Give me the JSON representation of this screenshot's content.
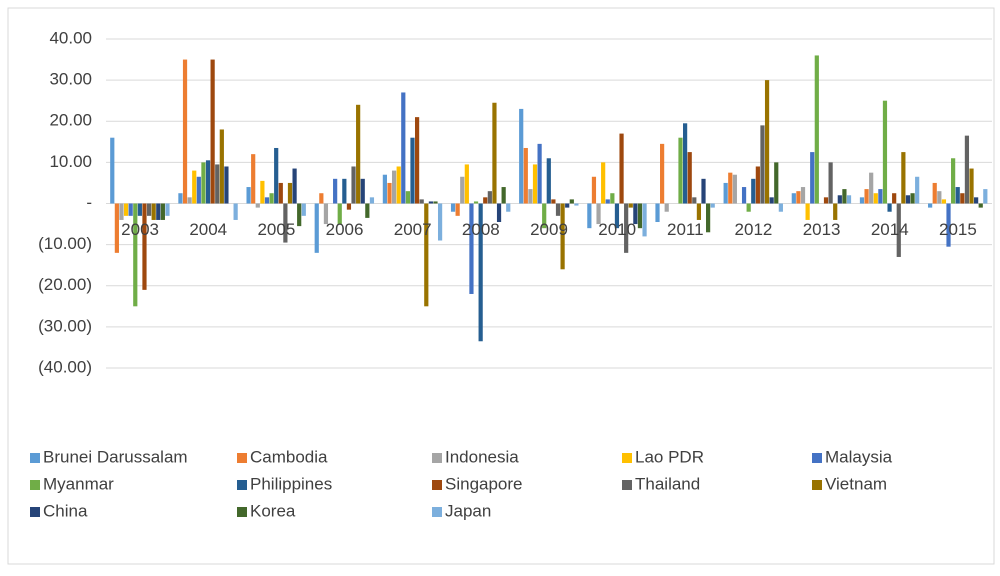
{
  "chart_data": {
    "type": "bar",
    "categories": [
      "2003",
      "2004",
      "2005",
      "2006",
      "2007",
      "2008",
      "2009",
      "2010",
      "2011",
      "2012",
      "2013",
      "2014",
      "2015"
    ],
    "ylim": [
      -40,
      40
    ],
    "yticks": [
      {
        "value": 40,
        "label": "40.00"
      },
      {
        "value": 30,
        "label": "30.00"
      },
      {
        "value": 20,
        "label": "20.00"
      },
      {
        "value": 10,
        "label": "10.00"
      },
      {
        "value": 0,
        "label": "-"
      },
      {
        "value": -10,
        "label": "(10.00)"
      },
      {
        "value": -20,
        "label": "(20.00)"
      },
      {
        "value": -30,
        "label": "(30.00)"
      },
      {
        "value": -40,
        "label": "(40.00)"
      }
    ],
    "grid": true,
    "legend": "bottom",
    "series": [
      {
        "name": "Brunei Darussalam",
        "color": "#5b9bd5",
        "values": [
          16,
          2.5,
          4,
          -12,
          7,
          -2,
          23,
          -6,
          -4.5,
          5,
          2.5,
          1.5,
          -1
        ]
      },
      {
        "name": "Cambodia",
        "color": "#ed7d31",
        "values": [
          -12,
          35,
          12,
          2.5,
          5,
          -3,
          13.5,
          6.5,
          14.5,
          7.5,
          3,
          3.5,
          5
        ]
      },
      {
        "name": "Indonesia",
        "color": "#a5a5a5",
        "values": [
          -4,
          1.5,
          -1,
          -5,
          8,
          6.5,
          3.5,
          -5,
          -2,
          7,
          4,
          7.5,
          3
        ]
      },
      {
        "name": "Lao PDR",
        "color": "#ffc000",
        "values": [
          -3,
          8,
          5.5,
          0,
          9,
          9.5,
          9.5,
          10,
          0,
          0,
          -4,
          2.5,
          1
        ]
      },
      {
        "name": "Malaysia",
        "color": "#4472c4",
        "values": [
          -3,
          6.5,
          1.5,
          6,
          27,
          -22,
          14.5,
          1,
          0,
          4,
          12.5,
          3.5,
          -10.5
        ]
      },
      {
        "name": "Myanmar",
        "color": "#70ad47",
        "values": [
          -25,
          10,
          2.5,
          -5,
          3,
          0.5,
          -6,
          2.5,
          16,
          -2,
          36,
          25,
          11
        ]
      },
      {
        "name": "Philippines",
        "color": "#255e91",
        "values": [
          -3,
          10.5,
          13.5,
          6,
          16,
          -33.5,
          11,
          -6,
          19.5,
          6,
          0,
          -2,
          4
        ]
      },
      {
        "name": "Singapore",
        "color": "#9e480e",
        "values": [
          -21,
          35,
          5,
          -1.5,
          21,
          1.5,
          1,
          17,
          12.5,
          9,
          1.5,
          2.5,
          2.5
        ]
      },
      {
        "name": "Thailand",
        "color": "#636363",
        "values": [
          -3,
          9.5,
          -9.5,
          9,
          1,
          3,
          -3,
          -12,
          1.5,
          19,
          10,
          -13,
          16.5
        ]
      },
      {
        "name": "Vietnam",
        "color": "#997300",
        "values": [
          -4,
          18,
          5,
          24,
          -25,
          24.5,
          -16,
          -1,
          -4,
          30,
          -4,
          12.5,
          8.5
        ]
      },
      {
        "name": "China",
        "color": "#264478",
        "values": [
          -4,
          9,
          8.5,
          6,
          0.5,
          -4.5,
          -1,
          -5,
          6,
          1.5,
          2,
          2,
          1.5
        ]
      },
      {
        "name": "Korea",
        "color": "#43682b",
        "values": [
          -4,
          0,
          -5.5,
          -3.5,
          0.5,
          4,
          1,
          -6,
          -7,
          10,
          3.5,
          2.5,
          -1
        ]
      },
      {
        "name": "Japan",
        "color": "#7cafdd",
        "values": [
          -3,
          -4,
          -3,
          1.5,
          -9,
          -2,
          -0.5,
          -8,
          -1,
          -2,
          2,
          6.5,
          3.5
        ]
      }
    ]
  }
}
